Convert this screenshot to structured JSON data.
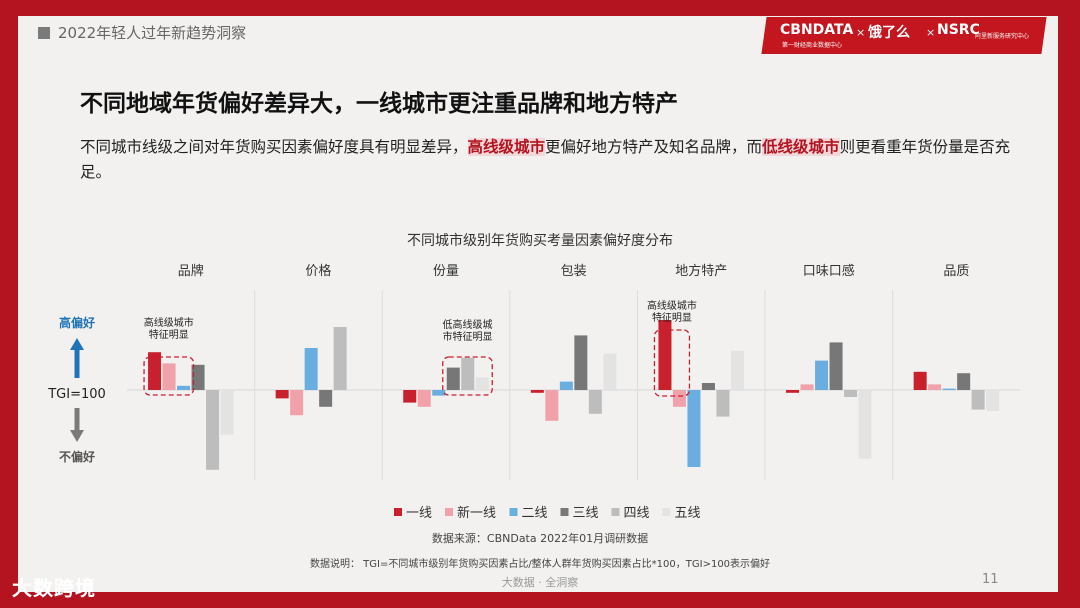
{
  "header": {
    "section": "2022年轻人过年新趋势洞察"
  },
  "brand": {
    "left": "CBNDATA",
    "left_sub": "第一财经商业数据中心",
    "mid": "饿了么",
    "right": "NSRC",
    "right_sub": "阿里新服务研究中心",
    "sep": "×"
  },
  "title": "不同地域年货偏好差异大，一线城市更注重品牌和地方特产",
  "lead": {
    "p1": "不同城市线级之间对年货购买因素偏好度具有明显差异，",
    "hl1": "高线级城市",
    "p2": "更偏好地方特产及知名品牌，而",
    "hl2": "低线级城市",
    "p3": "则更看重年货份量是否充足。"
  },
  "chart_data": {
    "type": "bar",
    "title": "不同城市级别年货购买考量因素偏好度分布",
    "categories": [
      "品牌",
      "价格",
      "份量",
      "包装",
      "地方特产",
      "口味口感",
      "品质"
    ],
    "baseline_label": "TGI=100",
    "y_high_label": "高偏好",
    "y_low_label": "不偏好",
    "series": [
      {
        "name": "一线",
        "color": "#c8202d",
        "values": [
          127,
          94,
          91,
          98,
          150,
          98,
          113
        ]
      },
      {
        "name": "新一线",
        "color": "#f0a1aa",
        "values": [
          119,
          82,
          88,
          78,
          88,
          104,
          104
        ]
      },
      {
        "name": "二线",
        "color": "#6aaee0",
        "values": [
          103,
          130,
          96,
          106,
          45,
          121,
          101
        ]
      },
      {
        "name": "三线",
        "color": "#777777",
        "values": [
          118,
          88,
          116,
          139,
          105,
          134,
          112
        ]
      },
      {
        "name": "四线",
        "color": "#bdbdbd",
        "values": [
          43,
          145,
          123,
          83,
          81,
          95,
          86
        ]
      },
      {
        "name": "五线",
        "color": "#e3e3e3",
        "values": [
          68,
          100,
          109,
          126,
          128,
          51,
          85
        ]
      }
    ],
    "annotations": [
      {
        "category": "品牌",
        "text": [
          "高线级城市",
          "特征明显"
        ]
      },
      {
        "category": "份量",
        "text": [
          "低高线级城",
          "市特征明显"
        ]
      },
      {
        "category": "地方特产",
        "text": [
          "高线级城市",
          "特征明显"
        ]
      }
    ]
  },
  "notes": {
    "source": "数据来源：CBNData 2022年01月调研数据",
    "explain": "数据说明： TGI=不同城市级别年货购买因素占比/整体人群年货购买因素占比*100，TGI>100表示偏好"
  },
  "footer": {
    "center": "大数据 · 全洞察",
    "page": "11",
    "watermark": "大数跨境"
  }
}
